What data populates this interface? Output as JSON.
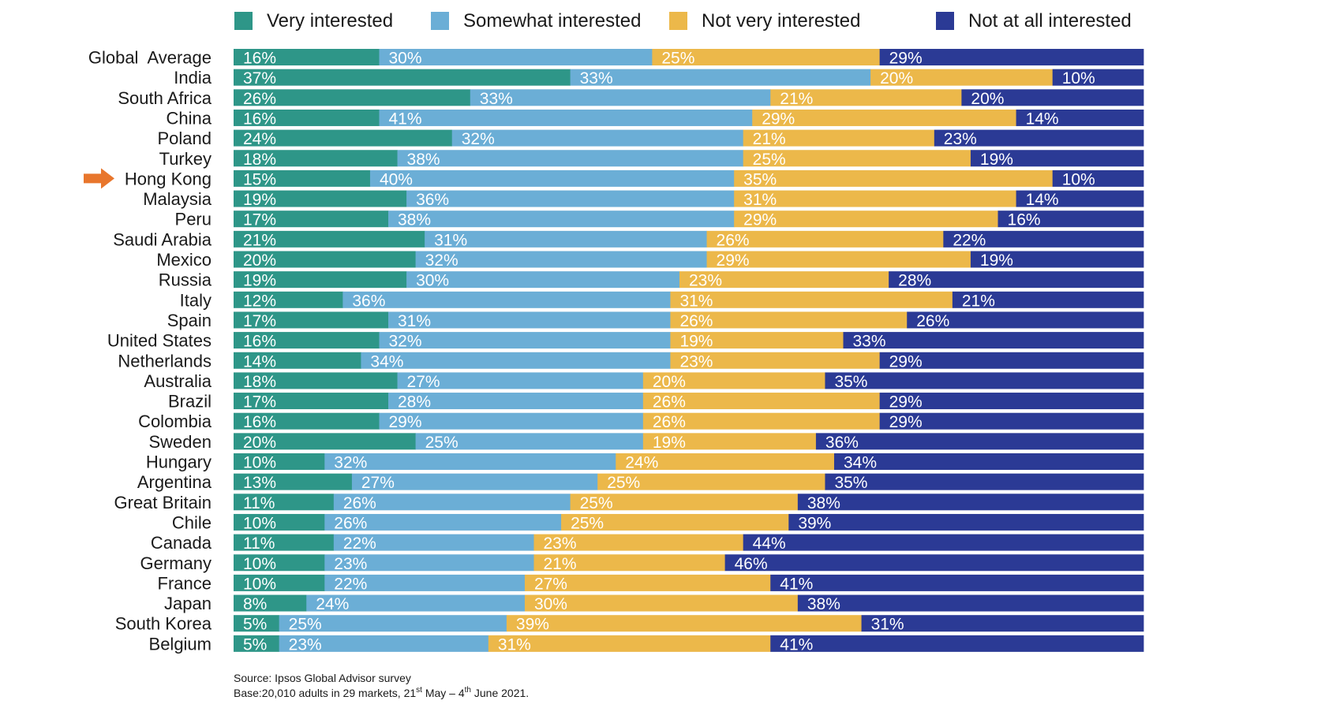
{
  "chart_data": {
    "type": "bar",
    "orientation": "horizontal",
    "stacked": true,
    "percent_stacked": true,
    "legend_position": "top",
    "grid": false,
    "value_suffix": "%",
    "colors": [
      "#2e9688",
      "#6baed6",
      "#ecb84a",
      "#2b3a95"
    ],
    "highlight": {
      "category": "Hong Kong",
      "marker": "arrow-icon",
      "color": "#e8762c"
    },
    "categories": [
      "Global  Average",
      "India",
      "South Africa",
      "China",
      "Poland",
      "Turkey",
      "Hong Kong",
      "Malaysia",
      "Peru",
      "Saudi Arabia",
      "Mexico",
      "Russia",
      "Italy",
      "Spain",
      "United States",
      "Netherlands",
      "Australia",
      "Brazil",
      "Colombia",
      "Sweden",
      "Hungary",
      "Argentina",
      "Great Britain",
      "Chile",
      "Canada",
      "Germany",
      "France",
      "Japan",
      "South Korea",
      "Belgium"
    ],
    "series": [
      {
        "name": "Very interested",
        "values": [
          16,
          37,
          26,
          16,
          24,
          18,
          15,
          19,
          17,
          21,
          20,
          19,
          12,
          17,
          16,
          14,
          18,
          17,
          16,
          20,
          10,
          13,
          11,
          10,
          11,
          10,
          10,
          8,
          5,
          5
        ]
      },
      {
        "name": "Somewhat interested",
        "values": [
          30,
          33,
          33,
          41,
          32,
          38,
          40,
          36,
          38,
          31,
          32,
          30,
          36,
          31,
          32,
          34,
          27,
          28,
          29,
          25,
          32,
          27,
          26,
          26,
          22,
          23,
          22,
          24,
          25,
          23
        ]
      },
      {
        "name": "Not very interested",
        "values": [
          25,
          20,
          21,
          29,
          21,
          25,
          35,
          31,
          29,
          26,
          29,
          23,
          31,
          26,
          19,
          23,
          20,
          26,
          26,
          19,
          24,
          25,
          25,
          25,
          23,
          21,
          27,
          30,
          39,
          31
        ]
      },
      {
        "name": "Not at all interested",
        "values": [
          29,
          10,
          20,
          14,
          23,
          19,
          10,
          14,
          16,
          22,
          19,
          28,
          21,
          26,
          33,
          29,
          35,
          29,
          29,
          36,
          34,
          35,
          38,
          39,
          44,
          46,
          41,
          38,
          31,
          41
        ]
      }
    ]
  },
  "footnote": {
    "source": "Source: Ipsos Global  Advisor survey",
    "base_prefix": "Base:20,010  adults  in 29 markets, 21",
    "base_sup1": "st",
    "base_mid": " May – 4",
    "base_sup2": "th",
    "base_suffix": " June 2021."
  }
}
